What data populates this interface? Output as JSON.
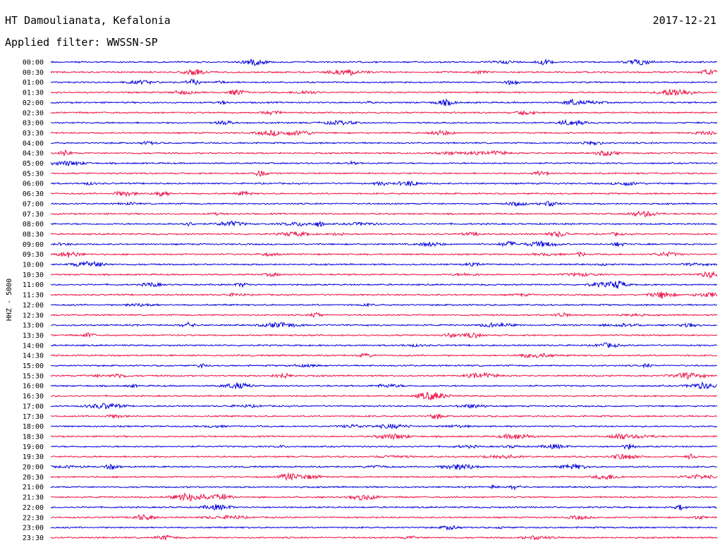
{
  "header": {
    "title": "HT Damoulianata, Kefalonia",
    "date": "2017-12-21",
    "filter": "Applied filter: WWSSN-SP"
  },
  "chart_data": {
    "type": "line",
    "ylabel": "HHZ - 5000",
    "colors": [
      "#0000dd",
      "#ee1144"
    ],
    "row_labels": [
      "00:00",
      "00:30",
      "01:00",
      "01:30",
      "02:00",
      "02:30",
      "03:00",
      "03:30",
      "04:00",
      "04:30",
      "05:00",
      "05:30",
      "06:00",
      "06:30",
      "07:00",
      "07:30",
      "08:00",
      "08:30",
      "09:00",
      "09:30",
      "10:00",
      "10:30",
      "11:00",
      "11:30",
      "12:00",
      "12:30",
      "13:00",
      "13:30",
      "14:00",
      "14:30",
      "15:00",
      "15:30",
      "16:00",
      "16:30",
      "17:00",
      "17:30",
      "18:00",
      "18:30",
      "19:00",
      "19:30",
      "20:00",
      "20:30",
      "21:00",
      "21:30",
      "22:00",
      "22:30",
      "23:00",
      "23:30"
    ],
    "grid": false
  }
}
